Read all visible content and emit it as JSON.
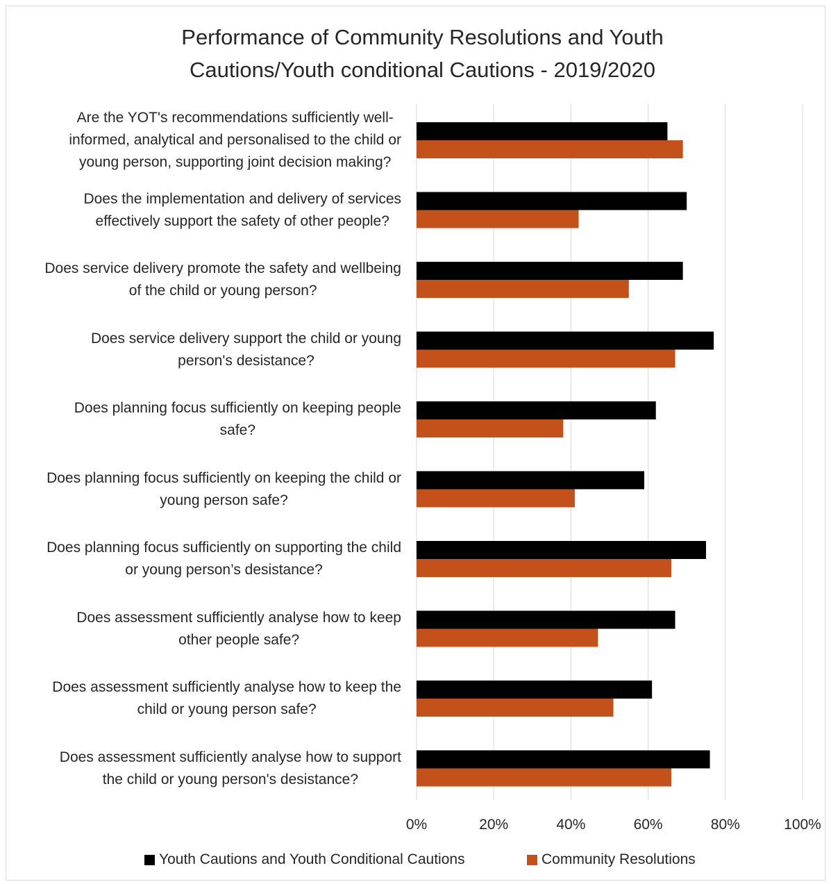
{
  "chart_data": {
    "type": "bar",
    "orientation": "horizontal",
    "title": "Performance of Community Resolutions and Youth\nCautions/Youth conditional Cautions - 2019/2020",
    "categories": [
      "Are the YOT's recommendations sufficiently well-informed, analytical and personalised to the child or young person, supporting joint decision making?",
      "Does the implementation and delivery of services effectively support the safety of other people?",
      "Does service delivery promote the safety and wellbeing of the child or young person?",
      "Does service delivery support the child or young person's desistance?",
      "Does planning focus sufficiently on keeping people safe?",
      "Does planning focus sufficiently on keeping the child or young person safe?",
      "Does planning focus sufficiently on supporting the child or young person’s desistance?",
      "Does assessment sufficiently analyse how to keep other people safe?",
      "Does assessment sufficiently analyse how to keep the child or young person safe?",
      "Does assessment sufficiently analyse how to support the child or young person's desistance?"
    ],
    "category_lines": [
      [
        "Are the YOT's recommendations sufficiently well-",
        "informed, analytical and personalised to the child or",
        "young person, supporting joint decision making?"
      ],
      [
        "Does the implementation and delivery of services",
        "effectively support the safety of other people?"
      ],
      [
        "Does service delivery promote the safety and wellbeing",
        "of the child or young person?"
      ],
      [
        "Does service delivery support the child or young",
        "person's desistance?"
      ],
      [
        "Does planning focus sufficiently on keeping people",
        "safe?"
      ],
      [
        "Does planning focus sufficiently on keeping the child or",
        "young person safe?"
      ],
      [
        "Does planning focus sufficiently on supporting the child",
        "or young person’s desistance?"
      ],
      [
        "Does assessment sufficiently analyse how to keep",
        "other people safe?"
      ],
      [
        "Does assessment sufficiently analyse how to keep the",
        "child or young person safe?"
      ],
      [
        "Does assessment sufficiently analyse how to support",
        "the child or young person's desistance?"
      ]
    ],
    "series": [
      {
        "name": "Youth Cautions and Youth Conditional Cautions",
        "color": "#000000",
        "values": [
          65,
          70,
          69,
          77,
          62,
          59,
          75,
          67,
          61,
          76
        ]
      },
      {
        "name": "Community Resolutions",
        "color": "#c4511a",
        "values": [
          69,
          42,
          55,
          67,
          38,
          41,
          66,
          47,
          51,
          66
        ]
      }
    ],
    "xlim": [
      0,
      100
    ],
    "xticks": [
      "0%",
      "20%",
      "40%",
      "60%",
      "80%",
      "100%"
    ],
    "xtick_values": [
      0,
      20,
      40,
      60,
      80,
      100
    ],
    "grid": true,
    "legend_position": "bottom"
  }
}
